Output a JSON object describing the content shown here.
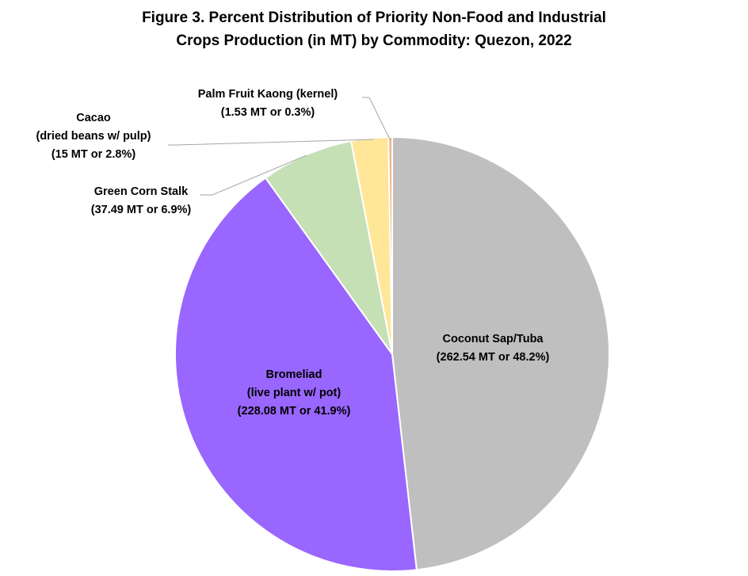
{
  "title": {
    "line1": "Figure 3. Percent Distribution of Priority Non-Food and Industrial",
    "line2": "Crops Production (in MT) by Commodity: Quezon, 2022"
  },
  "chart_data": {
    "type": "pie",
    "title": "Figure 3. Percent Distribution of Priority Non-Food and Industrial Crops Production (in MT) by Commodity: Quezon, 2022",
    "unit": "MT",
    "slices": [
      {
        "name": "Coconut Sap/Tuba",
        "value": 262.54,
        "percent": 48.2,
        "color": "#bfbfbf",
        "label_lines": [
          "Coconut Sap/Tuba",
          "(262.54 MT or 48.2%)"
        ]
      },
      {
        "name": "Bromeliad (live plant w/ pot)",
        "value": 228.08,
        "percent": 41.9,
        "color": "#9966ff",
        "label_lines": [
          "Bromeliad",
          "(live plant w/ pot)",
          "(228.08 MT or 41.9%)"
        ]
      },
      {
        "name": "Green Corn Stalk",
        "value": 37.49,
        "percent": 6.9,
        "color": "#c5e0b4",
        "label_lines": [
          "Green Corn Stalk",
          "(37.49 MT or 6.9%)"
        ]
      },
      {
        "name": "Cacao (dried beans w/ pulp)",
        "value": 15,
        "percent": 2.8,
        "color": "#ffe699",
        "label_lines": [
          "Cacao",
          "(dried beans w/ pulp)",
          "(15 MT or 2.8%)"
        ]
      },
      {
        "name": "Palm Fruit Kaong (kernel)",
        "value": 1.53,
        "percent": 0.3,
        "color": "#f4b183",
        "label_lines": [
          "Palm Fruit Kaong (kernel)",
          "(1.53 MT or 0.3%)"
        ]
      }
    ],
    "start_position": "12 o'clock",
    "direction": "clockwise",
    "legend": "none",
    "label_placement": "inside for large slices, outside with leader lines for small slices"
  }
}
